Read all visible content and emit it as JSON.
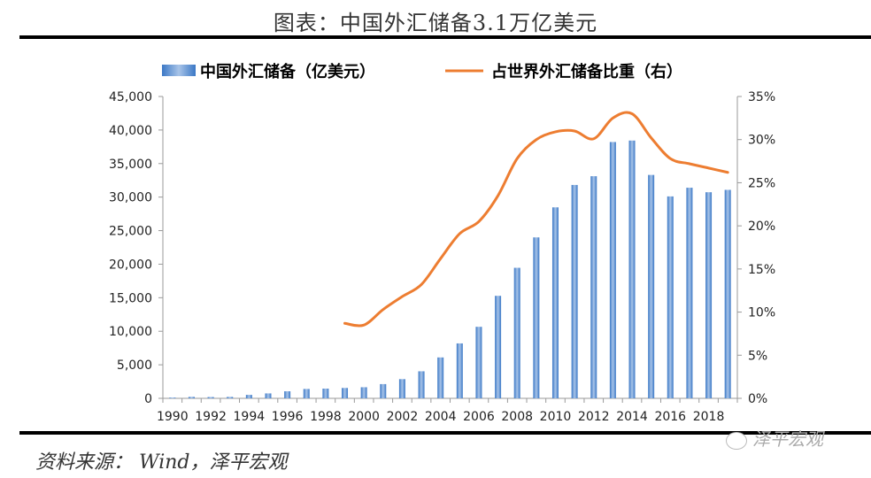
{
  "page": {
    "title": "图表：中国外汇储备3.1万亿美元",
    "source": "资料来源： Wind，泽平宏观",
    "watermark": "泽平宏观"
  },
  "chart_data": {
    "type": "bar+line",
    "title": "图表：中国外汇储备3.1万亿美元",
    "legend_position": "top",
    "categories": [
      "1990",
      "1991",
      "1992",
      "1993",
      "1994",
      "1995",
      "1996",
      "1997",
      "1998",
      "1999",
      "2000",
      "2001",
      "2002",
      "2003",
      "2004",
      "2005",
      "2006",
      "2007",
      "2008",
      "2009",
      "2010",
      "2011",
      "2012",
      "2013",
      "2014",
      "2015",
      "2016",
      "2017",
      "2018",
      "2019"
    ],
    "x_tick_labels": [
      "1990",
      "1992",
      "1994",
      "1996",
      "1998",
      "2000",
      "2002",
      "2004",
      "2006",
      "2008",
      "2010",
      "2012",
      "2014",
      "2016",
      "2018"
    ],
    "series": [
      {
        "name": "中国外汇储备（亿美元）",
        "type": "bar",
        "axis": "left",
        "color": "#4a86cf",
        "values": [
          111,
          217,
          194,
          212,
          516,
          736,
          1050,
          1399,
          1450,
          1547,
          1656,
          2122,
          2864,
          4033,
          6099,
          8189,
          10663,
          15282,
          19460,
          23992,
          28473,
          31811,
          33116,
          38213,
          38430,
          33304,
          30105,
          31399,
          30727,
          31079
        ]
      },
      {
        "name": "占世界外汇储备比重（右）",
        "type": "line",
        "axis": "right",
        "color": "#ed7d31",
        "values": [
          null,
          null,
          null,
          null,
          null,
          null,
          null,
          null,
          null,
          8.7,
          8.5,
          10.3,
          11.8,
          13.2,
          16.2,
          19.1,
          20.5,
          23.5,
          27.8,
          30.0,
          30.9,
          31.0,
          30.1,
          32.5,
          33.0,
          30.2,
          27.8,
          27.2,
          26.7,
          26.2
        ]
      }
    ],
    "y_left": {
      "range": [
        0,
        45000
      ],
      "ticks": [
        0,
        5000,
        10000,
        15000,
        20000,
        25000,
        30000,
        35000,
        40000,
        45000
      ],
      "tick_labels": [
        "0",
        "5,000",
        "10,000",
        "15,000",
        "20,000",
        "25,000",
        "30,000",
        "35,000",
        "40,000",
        "45,000"
      ]
    },
    "y_right": {
      "range": [
        0,
        35
      ],
      "ticks": [
        0,
        5,
        10,
        15,
        20,
        25,
        30,
        35
      ],
      "tick_labels": [
        "0%",
        "5%",
        "10%",
        "15%",
        "20%",
        "25%",
        "30%",
        "35%"
      ]
    },
    "grid": false
  }
}
